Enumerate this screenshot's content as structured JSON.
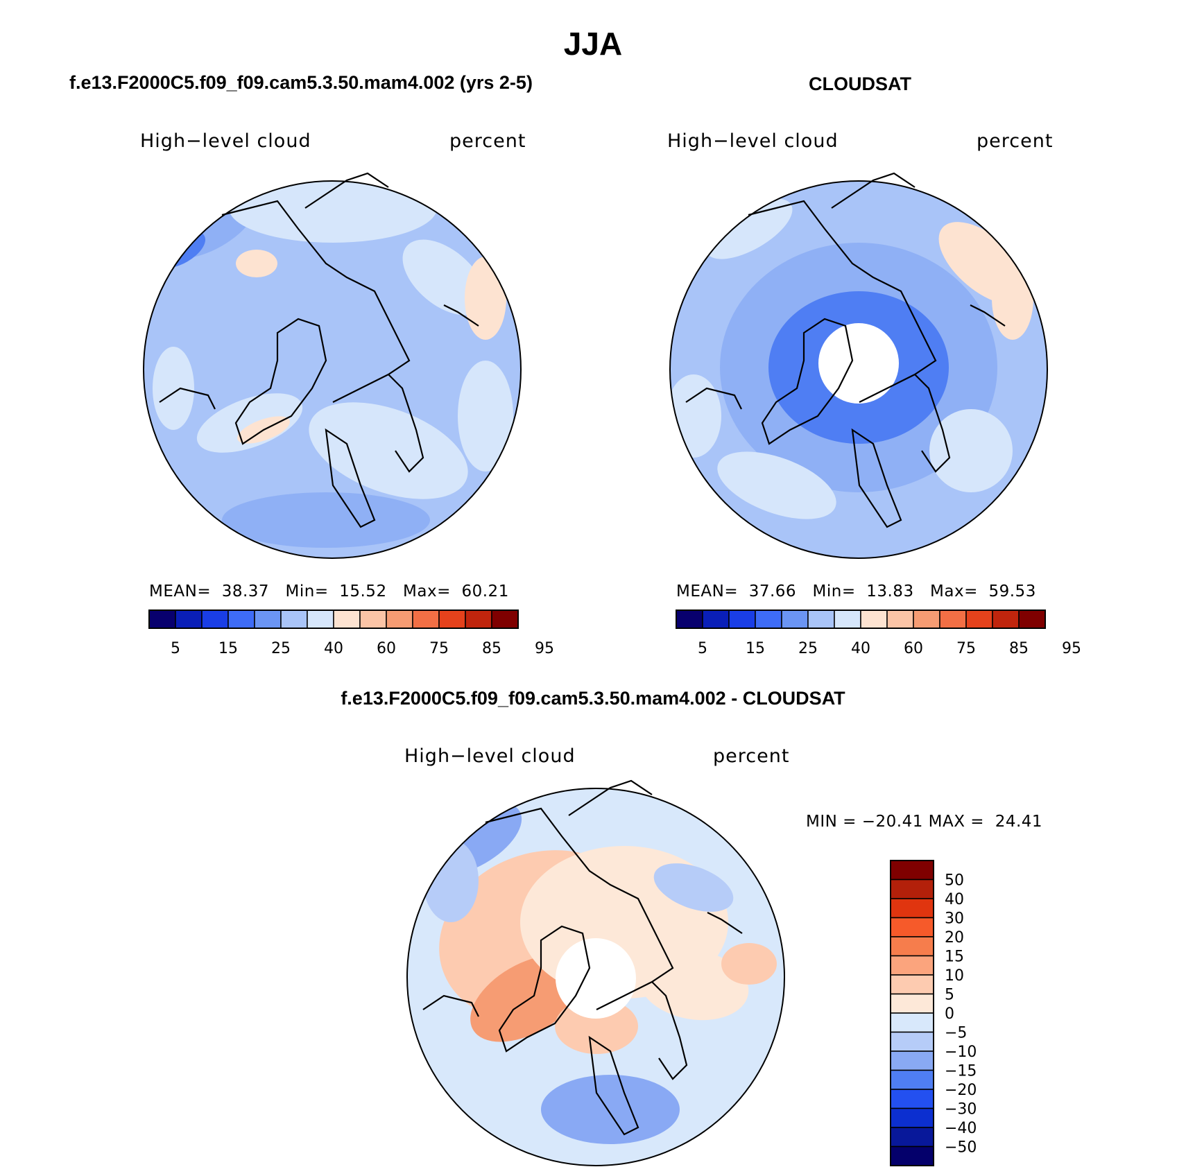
{
  "title": "JJA",
  "panels": [
    {
      "title": "f.e13.F2000C5.f09_f09.cam5.3.50.mam4.002 (yrs 2-5)",
      "left_label": "High−level cloud",
      "right_label": "percent",
      "stats": {
        "mean_label": "MEAN=",
        "mean": "38.37",
        "min_label": "Min=",
        "min": "15.52",
        "max_label": "Max=",
        "max": "60.21"
      }
    },
    {
      "title": "CLOUDSAT",
      "left_label": "High−level cloud",
      "right_label": "percent",
      "stats": {
        "mean_label": "MEAN=",
        "mean": "37.66",
        "min_label": "Min=",
        "min": "13.83",
        "max_label": "Max=",
        "max": "59.53"
      }
    },
    {
      "title": "f.e13.F2000C5.f09_f09.cam5.3.50.mam4.002 - CLOUDSAT",
      "left_label": "High−level cloud",
      "right_label": "percent",
      "stats": {
        "text": "MIN = −20.41 MAX =  24.41"
      }
    }
  ],
  "colorbar_abs": {
    "tick_labels": [
      "5",
      "15",
      "25",
      "40",
      "60",
      "75",
      "85",
      "95"
    ],
    "colors": [
      "#08006e",
      "#0a1fb8",
      "#1a3ee6",
      "#3e6cf7",
      "#6b95f4",
      "#a9c4f8",
      "#d6e6fb",
      "#fde3d1",
      "#fbc4a6",
      "#f69c73",
      "#f26f45",
      "#e5421c",
      "#c0250d",
      "#7f0000"
    ]
  },
  "colorbar_diff": {
    "tick_labels": [
      "50",
      "40",
      "30",
      "20",
      "15",
      "10",
      "5",
      "0",
      "−5",
      "−10",
      "−15",
      "−20",
      "−30",
      "−40",
      "−50"
    ],
    "colors": [
      "#7f0000",
      "#b3200a",
      "#e0350f",
      "#f65a2a",
      "#f67d4c",
      "#fba47d",
      "#fdcbb0",
      "#fde8d8",
      "#d8e8fb",
      "#b6ccf8",
      "#89a9f4",
      "#4f7ef3",
      "#2350f0",
      "#0c2fd0",
      "#08189a",
      "#04006b"
    ]
  },
  "map_colors": {
    "abs_base": "#a9c4f8",
    "abs_light": "#d6e6fb",
    "abs_mid": "#8fb0f5",
    "abs_dark": "#4f7ef3",
    "abs_warm": "#fde3d1",
    "diff_base": "#d8e8fb",
    "diff_warm1": "#fde8d8",
    "diff_warm2": "#fdcbb0",
    "diff_warm3": "#f69c73",
    "diff_cool1": "#b6ccf8",
    "diff_cool2": "#89a9f4"
  }
}
